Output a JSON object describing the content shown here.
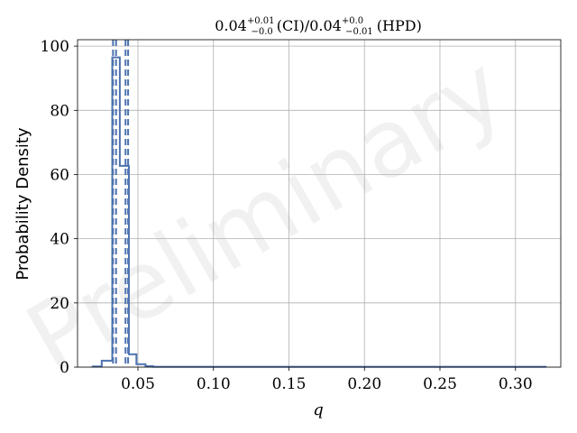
{
  "chart_data": {
    "type": "histogram",
    "title_parts": {
      "ci_value": "0.04",
      "ci_plus": "+0.01",
      "ci_minus": "−0.0",
      "ci_label": "(CI)",
      "separator": "/",
      "hpd_value": "0.04",
      "hpd_plus": "+0.0",
      "hpd_minus": "−0.01",
      "hpd_label": "(HPD)"
    },
    "xlabel": "q",
    "ylabel": "Probability Density",
    "watermark": "Preliminary",
    "xlim": [
      0.01,
      0.33
    ],
    "ylim": [
      0,
      102
    ],
    "xticks": [
      0.05,
      0.1,
      0.15,
      0.2,
      0.25,
      0.3
    ],
    "xtick_labels": [
      "0.05",
      "0.10",
      "0.15",
      "0.20",
      "0.25",
      "0.30"
    ],
    "yticks": [
      0,
      20,
      40,
      60,
      80,
      100
    ],
    "ytick_labels": [
      "0",
      "20",
      "40",
      "60",
      "80",
      "100"
    ],
    "grid": true,
    "color": "#4c72b0",
    "bins": [
      [
        0.02,
        0.026,
        0.2
      ],
      [
        0.026,
        0.033,
        2.0
      ],
      [
        0.033,
        0.038,
        96.5
      ],
      [
        0.038,
        0.044,
        62.7
      ],
      [
        0.044,
        0.049,
        4.0
      ],
      [
        0.049,
        0.055,
        0.9
      ],
      [
        0.055,
        0.06,
        0.3
      ],
      [
        0.06,
        0.32,
        0.1
      ]
    ],
    "dashed_lines": [
      0.0335,
      0.0355,
      0.0418,
      0.0435
    ]
  }
}
